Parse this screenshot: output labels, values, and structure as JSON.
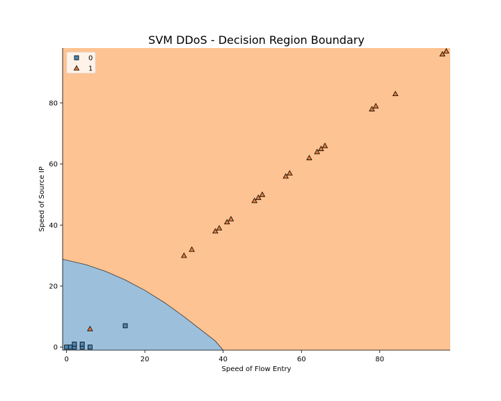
{
  "chart_data": {
    "type": "scatter",
    "title": "SVM DDoS - Decision Region Boundary",
    "xlabel": "Speed of Flow Entry",
    "ylabel": "Speed of Source IP",
    "xlim": [
      -1,
      98
    ],
    "ylim": [
      -1,
      98
    ],
    "x_ticks": [
      0,
      20,
      40,
      60,
      80
    ],
    "y_ticks": [
      0,
      20,
      40,
      60,
      80
    ],
    "grid": false,
    "legend_position": "top-left",
    "regions": [
      {
        "class": "0",
        "color": "#9cc0dc"
      },
      {
        "class": "1",
        "color": "#fec392"
      }
    ],
    "boundary": {
      "color": "#333333",
      "points": [
        [
          -1,
          28.8
        ],
        [
          5,
          27
        ],
        [
          10,
          24.8
        ],
        [
          15,
          22
        ],
        [
          20,
          18.6
        ],
        [
          25,
          14.6
        ],
        [
          30,
          10
        ],
        [
          35,
          5
        ],
        [
          38,
          2
        ],
        [
          40,
          -1
        ]
      ]
    },
    "series": [
      {
        "name": "0",
        "marker": "square",
        "color": "#4c86b4",
        "points": [
          [
            0,
            0
          ],
          [
            1,
            0
          ],
          [
            2,
            0
          ],
          [
            2,
            1
          ],
          [
            4,
            0
          ],
          [
            4,
            1
          ],
          [
            6,
            0
          ],
          [
            15,
            7
          ]
        ]
      },
      {
        "name": "1",
        "marker": "triangle",
        "color": "#e67e3d",
        "points": [
          [
            6,
            6
          ],
          [
            30,
            30
          ],
          [
            32,
            32
          ],
          [
            38,
            38
          ],
          [
            39,
            39
          ],
          [
            41,
            41
          ],
          [
            42,
            42
          ],
          [
            48,
            48
          ],
          [
            49,
            49
          ],
          [
            50,
            50
          ],
          [
            56,
            56
          ],
          [
            57,
            57
          ],
          [
            62,
            62
          ],
          [
            64,
            64
          ],
          [
            65,
            65
          ],
          [
            66,
            66
          ],
          [
            78,
            78
          ],
          [
            79,
            79
          ],
          [
            84,
            83
          ],
          [
            96,
            96
          ],
          [
            97,
            97
          ]
        ]
      }
    ]
  }
}
